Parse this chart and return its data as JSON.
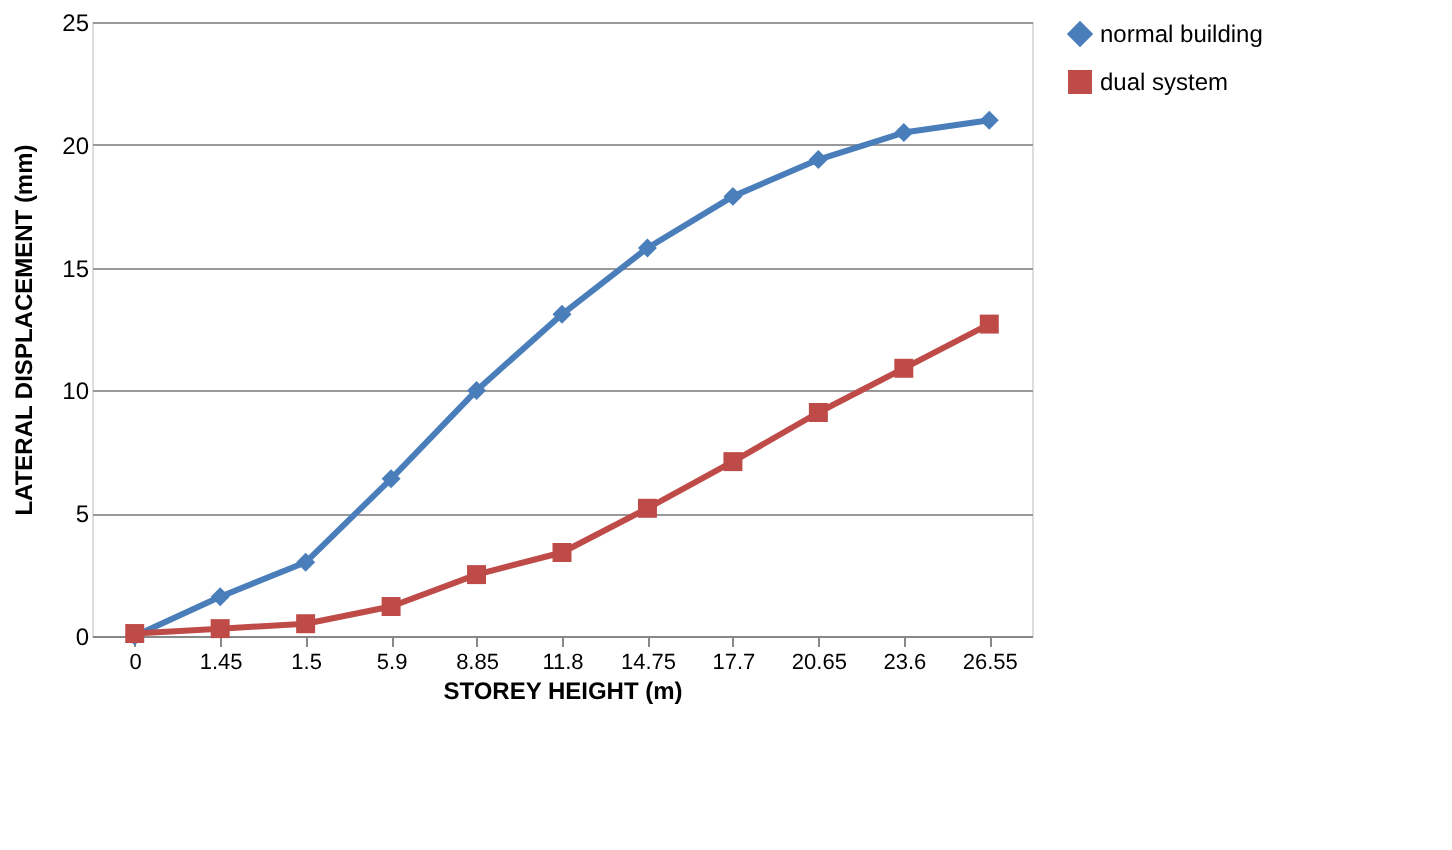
{
  "chart_data": {
    "type": "line",
    "xlabel": "STOREY HEIGHT (m)",
    "ylabel": "LATERAL DISPLACEMENT (mm)",
    "categories": [
      "0",
      "1.45",
      "1.5",
      "5.9",
      "8.85",
      "11.8",
      "14.75",
      "17.7",
      "20.65",
      "23.6",
      "26.55"
    ],
    "series": [
      {
        "name": "normal building",
        "color": "#4a7ebb",
        "marker": "diamond",
        "values": [
          0,
          1.6,
          3.0,
          6.4,
          10.0,
          13.1,
          15.8,
          17.9,
          19.4,
          20.5,
          21.0
        ]
      },
      {
        "name": "dual system",
        "color": "#be4b48",
        "marker": "square",
        "values": [
          0.1,
          0.3,
          0.5,
          1.2,
          2.5,
          3.4,
          5.2,
          7.1,
          9.1,
          10.9,
          12.7
        ]
      }
    ],
    "ylim": [
      0,
      25
    ],
    "yticks": [
      0,
      5,
      10,
      15,
      20,
      25
    ],
    "grid": "y",
    "legend": "right",
    "line_style": "solid"
  }
}
